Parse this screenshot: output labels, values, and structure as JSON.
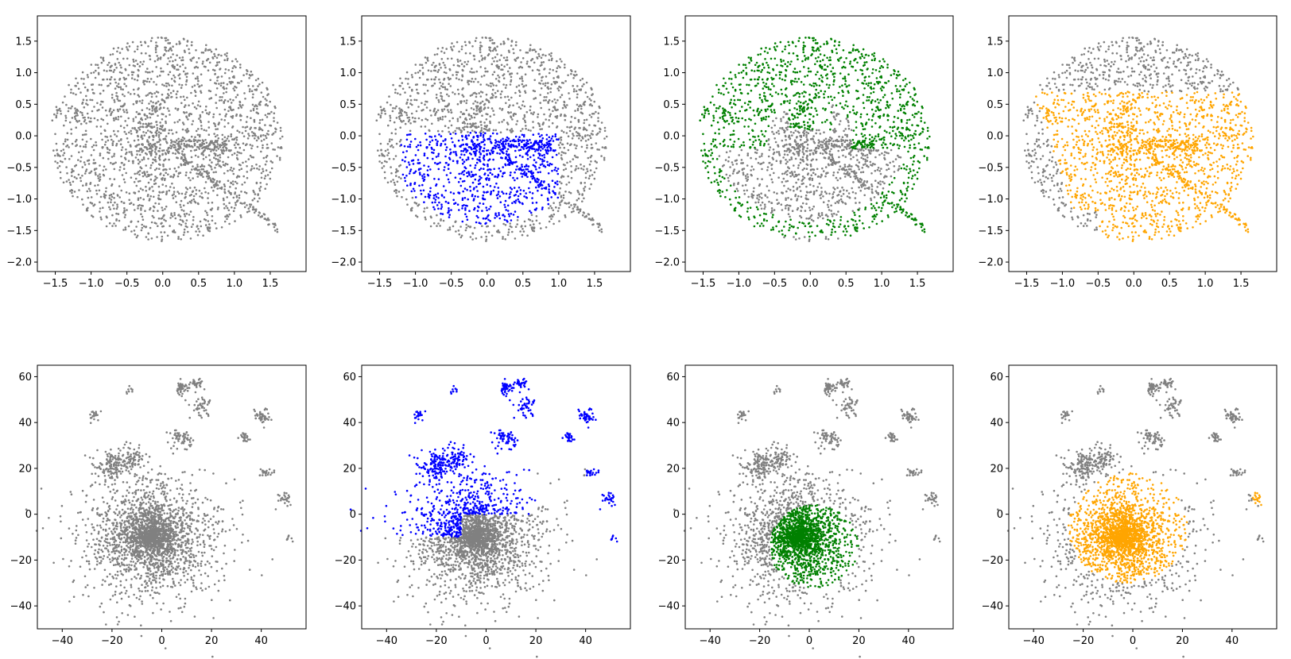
{
  "chart_data": [
    {
      "type": "scatter",
      "highlight": null,
      "xlim": [
        -1.75,
        2.0
      ],
      "ylim": [
        -2.15,
        1.9
      ],
      "xticks": [
        -1.5,
        -1.0,
        -0.5,
        0.0,
        0.5,
        1.0,
        1.5
      ],
      "xtick_labels": [
        "−1.5",
        "−1.0",
        "−0.5",
        "0.0",
        "0.5",
        "1.0",
        "1.5"
      ],
      "yticks": [
        -2.0,
        -1.5,
        -1.0,
        -0.5,
        0.0,
        0.5,
        1.0,
        1.5
      ],
      "ytick_labels": [
        "−2.0",
        "−1.5",
        "−1.0",
        "−0.5",
        "0.0",
        "0.5",
        "1.0",
        "1.5"
      ],
      "grid": false
    },
    {
      "type": "scatter",
      "highlight": "#0000ff",
      "highlight_region": "lower-center",
      "xlim": [
        -1.75,
        2.0
      ],
      "ylim": [
        -2.15,
        1.9
      ],
      "xticks": [
        -1.5,
        -1.0,
        -0.5,
        0.0,
        0.5,
        1.0,
        1.5
      ],
      "xtick_labels": [
        "−1.5",
        "−1.0",
        "−0.5",
        "0.0",
        "0.5",
        "1.0",
        "1.5"
      ],
      "yticks": [
        -2.0,
        -1.5,
        -1.0,
        -0.5,
        0.0,
        0.5,
        1.0,
        1.5
      ],
      "ytick_labels": [
        "−2.0",
        "−1.5",
        "−1.0",
        "−0.5",
        "0.0",
        "0.5",
        "1.0",
        "1.5"
      ],
      "grid": false
    },
    {
      "type": "scatter",
      "highlight": "#008000",
      "highlight_region": "outer-ring",
      "xlim": [
        -1.75,
        2.0
      ],
      "ylim": [
        -2.15,
        1.9
      ],
      "xticks": [
        -1.5,
        -1.0,
        -0.5,
        0.0,
        0.5,
        1.0,
        1.5
      ],
      "xtick_labels": [
        "−1.5",
        "−1.0",
        "−0.5",
        "0.0",
        "0.5",
        "1.0",
        "1.5"
      ],
      "yticks": [
        -2.0,
        -1.5,
        -1.0,
        -0.5,
        0.0,
        0.5,
        1.0,
        1.5
      ],
      "ytick_labels": [
        "−2.0",
        "−1.5",
        "−1.0",
        "−0.5",
        "0.0",
        "0.5",
        "1.0",
        "1.5"
      ],
      "grid": false
    },
    {
      "type": "scatter",
      "highlight": "#ffa500",
      "highlight_region": "lower-right",
      "xlim": [
        -1.75,
        2.0
      ],
      "ylim": [
        -2.15,
        1.9
      ],
      "xticks": [
        -1.5,
        -1.0,
        -0.5,
        0.0,
        0.5,
        1.0,
        1.5
      ],
      "xtick_labels": [
        "−1.5",
        "−1.0",
        "−0.5",
        "0.0",
        "0.5",
        "1.0",
        "1.5"
      ],
      "yticks": [
        -2.0,
        -1.5,
        -1.0,
        -0.5,
        0.0,
        0.5,
        1.0,
        1.5
      ],
      "ytick_labels": [
        "−2.0",
        "−1.5",
        "−1.0",
        "−0.5",
        "0.0",
        "0.5",
        "1.0",
        "1.5"
      ],
      "grid": false
    },
    {
      "type": "scatter",
      "highlight": null,
      "xlim": [
        -50,
        58
      ],
      "ylim": [
        -50,
        65
      ],
      "xticks": [
        -40,
        -20,
        0,
        20,
        40
      ],
      "xtick_labels": [
        "−40",
        "−20",
        "0",
        "20",
        "40"
      ],
      "yticks": [
        -40,
        -20,
        0,
        20,
        40,
        60
      ],
      "ytick_labels": [
        "−40",
        "−20",
        "0",
        "20",
        "40",
        "60"
      ],
      "grid": false
    },
    {
      "type": "scatter",
      "highlight": "#0000ff",
      "highlight_region": "upper-clusters",
      "xlim": [
        -50,
        58
      ],
      "ylim": [
        -50,
        65
      ],
      "xticks": [
        -40,
        -20,
        0,
        20,
        40
      ],
      "xtick_labels": [
        "−40",
        "−20",
        "0",
        "20",
        "40"
      ],
      "yticks": [
        -40,
        -20,
        0,
        20,
        40,
        60
      ],
      "ytick_labels": [
        "−40",
        "−20",
        "0",
        "20",
        "40",
        "60"
      ],
      "grid": false
    },
    {
      "type": "scatter",
      "highlight": "#008000",
      "highlight_region": "center-core",
      "xlim": [
        -50,
        58
      ],
      "ylim": [
        -50,
        65
      ],
      "xticks": [
        -40,
        -20,
        0,
        20,
        40
      ],
      "xtick_labels": [
        "−40",
        "−20",
        "0",
        "20",
        "40"
      ],
      "yticks": [
        -40,
        -20,
        0,
        20,
        40,
        60
      ],
      "ytick_labels": [
        "−40",
        "−20",
        "0",
        "20",
        "40",
        "60"
      ],
      "grid": false
    },
    {
      "type": "scatter",
      "highlight": "#ffa500",
      "highlight_region": "broad-center",
      "xlim": [
        -50,
        58
      ],
      "ylim": [
        -50,
        65
      ],
      "xticks": [
        -40,
        -20,
        0,
        20,
        40
      ],
      "xtick_labels": [
        "−40",
        "−20",
        "0",
        "20",
        "40"
      ],
      "yticks": [
        -40,
        -20,
        0,
        20,
        40,
        60
      ],
      "ytick_labels": [
        "−40",
        "−20",
        "0",
        "20",
        "40",
        "60"
      ],
      "grid": false
    }
  ],
  "colors": {
    "background_points": "#808080",
    "blue": "#0000ff",
    "green": "#008000",
    "orange": "#ffa500"
  }
}
